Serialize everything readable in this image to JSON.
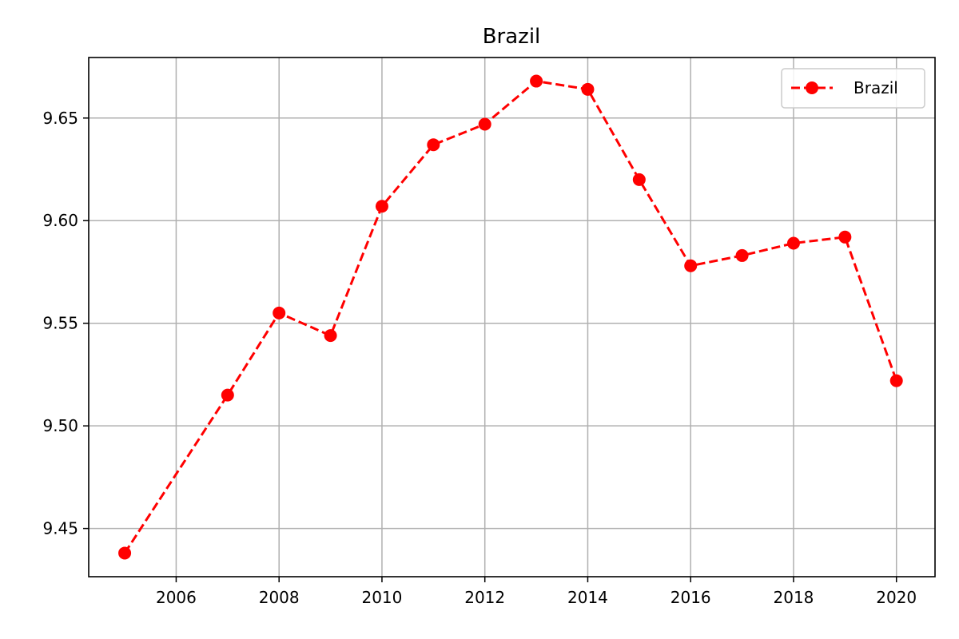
{
  "chart_data": {
    "type": "line",
    "title": "Brazil",
    "xlabel": "",
    "ylabel": "",
    "x": [
      2005,
      2007,
      2008,
      2009,
      2010,
      2011,
      2012,
      2013,
      2014,
      2015,
      2016,
      2017,
      2018,
      2019,
      2020
    ],
    "series": [
      {
        "name": "Brazil",
        "color": "#ff0000",
        "line_style": "dashed",
        "marker": "circle",
        "values": [
          9.438,
          9.515,
          9.555,
          9.544,
          9.607,
          9.637,
          9.647,
          9.668,
          9.664,
          9.62,
          9.578,
          9.583,
          9.589,
          9.592,
          9.522
        ]
      }
    ],
    "xlim": [
      2004.3,
      2020.75
    ],
    "ylim": [
      9.4265,
      9.6795
    ],
    "xticks": [
      2006,
      2008,
      2010,
      2012,
      2014,
      2016,
      2018,
      2020
    ],
    "xtick_labels": [
      "2006",
      "2008",
      "2010",
      "2012",
      "2014",
      "2016",
      "2018",
      "2020"
    ],
    "yticks": [
      9.45,
      9.5,
      9.55,
      9.6,
      9.65
    ],
    "ytick_labels": [
      "9.45",
      "9.50",
      "9.55",
      "9.60",
      "9.65"
    ],
    "grid": true,
    "legend": {
      "position": "top-right",
      "entries": [
        "Brazil"
      ]
    }
  }
}
